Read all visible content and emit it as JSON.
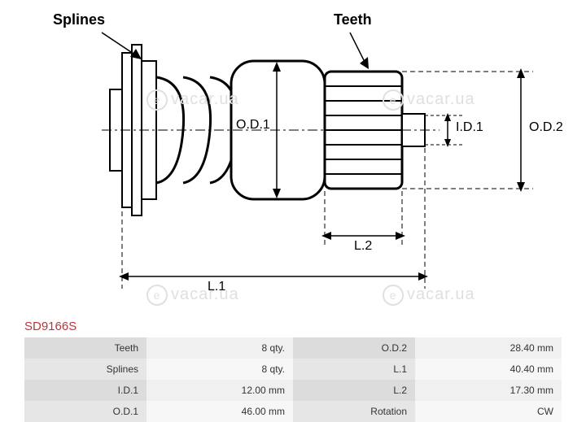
{
  "part_code": "SD9166S",
  "labels": {
    "splines": "Splines",
    "teeth": "Teeth",
    "od1": "O.D.1",
    "od2": "O.D.2",
    "id1": "I.D.1",
    "l1": "L.1",
    "l2": "L.2"
  },
  "specs": [
    {
      "left_label": "Teeth",
      "left_value": "8 qty.",
      "right_label": "O.D.2",
      "right_value": "28.40 mm"
    },
    {
      "left_label": "Splines",
      "left_value": "8 qty.",
      "right_label": "L.1",
      "right_value": "40.40 mm"
    },
    {
      "left_label": "I.D.1",
      "left_value": "12.00 mm",
      "right_label": "L.2",
      "right_value": "17.30 mm"
    },
    {
      "left_label": "O.D.1",
      "left_value": "46.00 mm",
      "right_label": "Rotation",
      "right_value": "CW"
    }
  ],
  "watermark_text": "vacar.ua",
  "diagram": {
    "stroke": "#000000",
    "stroke_width": 2,
    "fill": "#ffffff"
  }
}
